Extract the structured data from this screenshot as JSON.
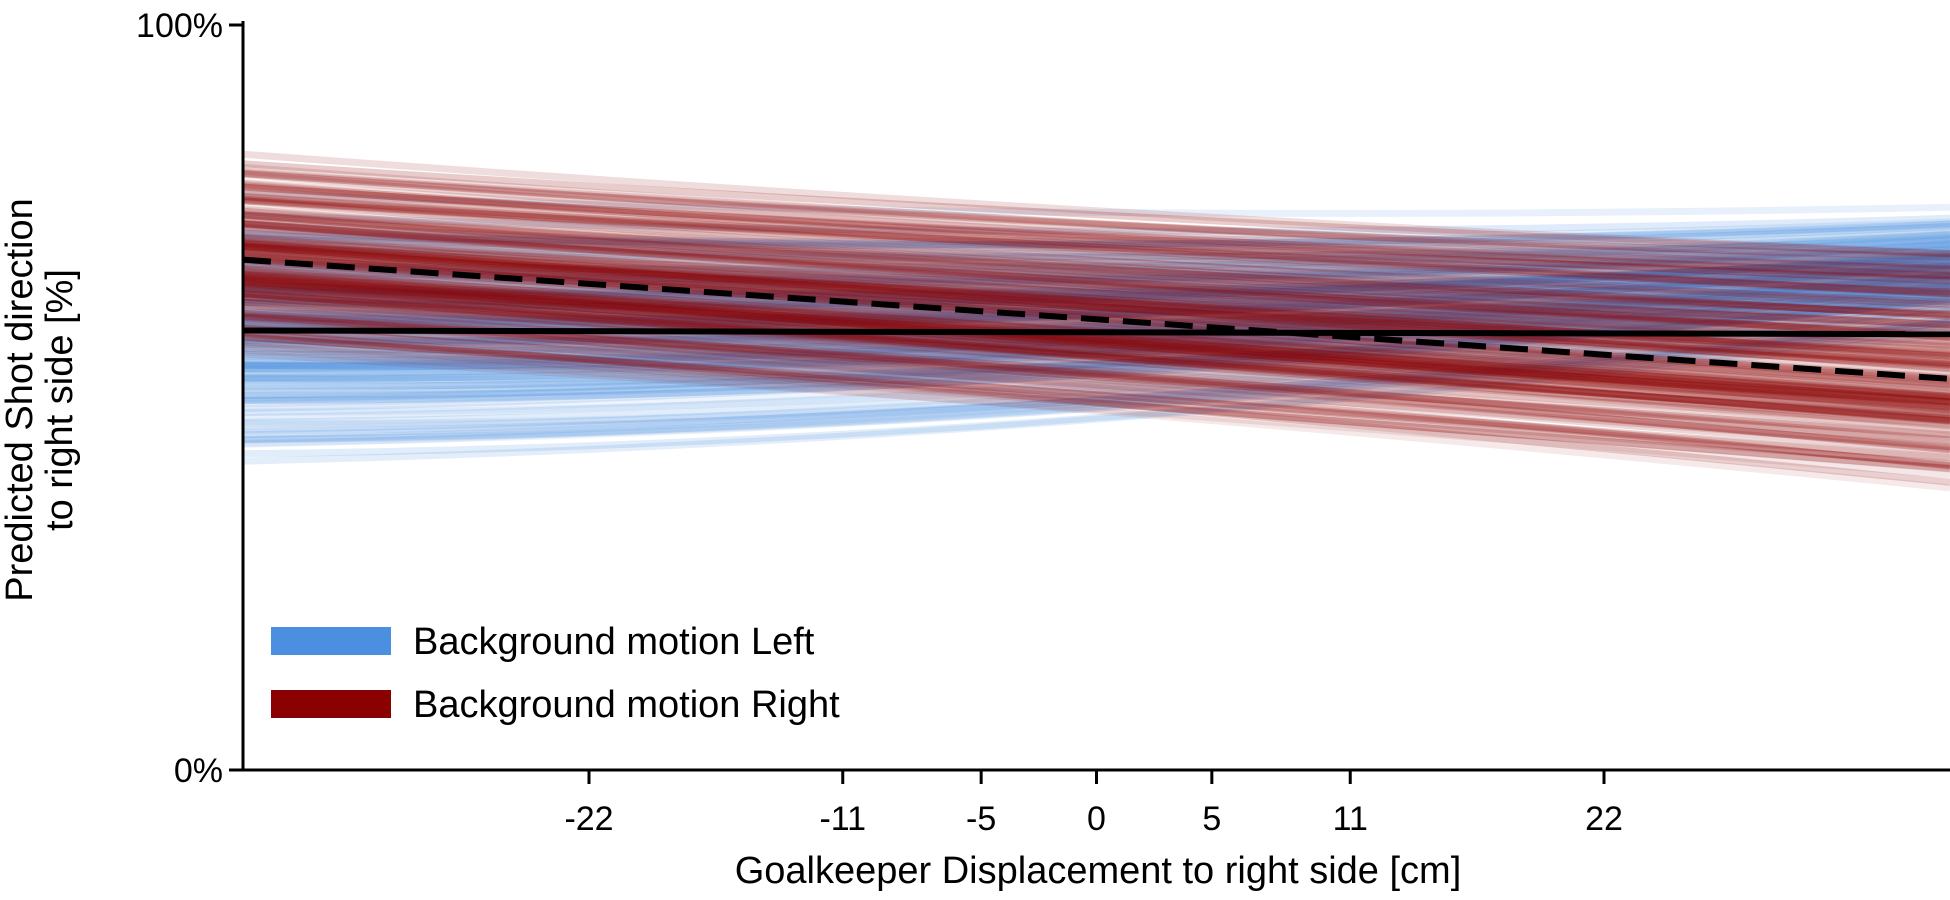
{
  "chart_data": {
    "type": "line",
    "xlabel": "Goalkeeper Displacement to right side [cm]",
    "ylabel_line1": "Predicted Shot direction",
    "ylabel_line2": "to right side [%]",
    "xlim": [
      -37,
      37
    ],
    "ylim": [
      0,
      100
    ],
    "x_ticks": [
      -22,
      -11,
      -5,
      0,
      5,
      11,
      22
    ],
    "x_tick_labels": [
      "-22",
      "-11",
      "-5",
      "0",
      "5",
      "11",
      "22"
    ],
    "y_ticks": [
      0,
      100
    ],
    "y_tick_labels": [
      "0%",
      "100%"
    ],
    "legend": {
      "placement": "lower-left",
      "entries": [
        {
          "label": "Background motion Left",
          "color": "#4a8fe0"
        },
        {
          "label": "Background motion Right",
          "color": "#8b0000"
        }
      ]
    },
    "series": [
      {
        "name": "Background motion Left",
        "kind": "posterior-band",
        "color": "#4a8fe0",
        "x": [
          -37,
          0,
          37
        ],
        "lower": [
          37,
          40,
          57
        ],
        "upper": [
          83,
          77,
          78
        ]
      },
      {
        "name": "Background motion Right",
        "kind": "posterior-band",
        "color": "#8b0000",
        "x": [
          -37,
          0,
          37
        ],
        "lower": [
          53,
          45,
          33
        ],
        "upper": [
          86,
          78,
          76
        ]
      },
      {
        "kind": "mean-solid",
        "color": "#000000",
        "x": [
          -37,
          37
        ],
        "y": [
          59,
          58.5
        ]
      },
      {
        "kind": "mean-dashed",
        "color": "#000000",
        "x": [
          -37,
          37
        ],
        "y": [
          68.5,
          52.5
        ]
      }
    ]
  }
}
